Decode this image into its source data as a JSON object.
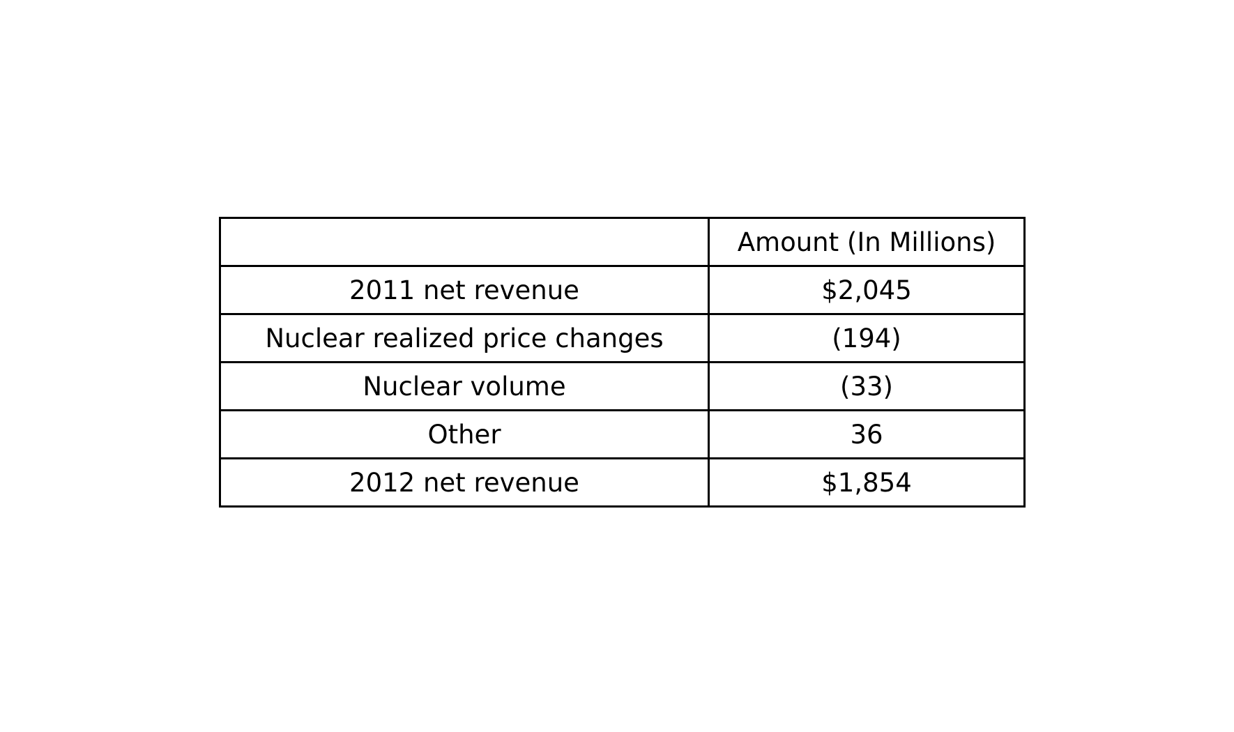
{
  "chart_data": {
    "type": "table",
    "columns": [
      "",
      "Amount (In Millions)"
    ],
    "rows": [
      [
        "2011 net revenue",
        "$2,045"
      ],
      [
        "Nuclear realized price changes",
        "(194)"
      ],
      [
        "Nuclear volume",
        "(33)"
      ],
      [
        "Other",
        "36"
      ],
      [
        "2012 net revenue",
        "$1,854"
      ]
    ],
    "grid": true
  }
}
